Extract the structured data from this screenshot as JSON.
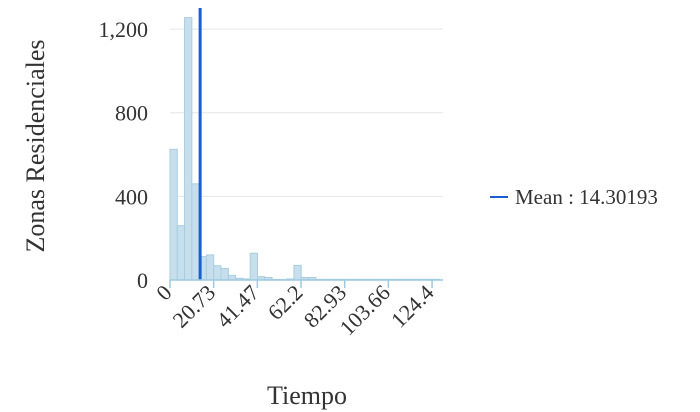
{
  "chart_data": {
    "type": "bar",
    "subtype": "histogram",
    "xlabel": "Tiempo",
    "ylabel": "Zonas Residenciales",
    "x_tick_labels": [
      "0",
      "20.73",
      "41.47",
      "62.2",
      "82.93",
      "103.66",
      "124.4"
    ],
    "x_ticks": [
      0,
      20.73,
      41.47,
      62.2,
      82.93,
      103.66,
      124.4
    ],
    "y_tick_labels": [
      "0",
      "400",
      "800",
      "1,200"
    ],
    "y_ticks": [
      0,
      400,
      800,
      1200
    ],
    "xlim": [
      0,
      129.6
    ],
    "ylim": [
      0,
      1320
    ],
    "bin_width": 3.46,
    "counts": [
      625,
      260,
      1255,
      460,
      112,
      120,
      68,
      55,
      22,
      8,
      5,
      128,
      16,
      12,
      3,
      2,
      5,
      70,
      12,
      12,
      3,
      3,
      3,
      3,
      3,
      3,
      3,
      3,
      3,
      3,
      3,
      3,
      3,
      3,
      3,
      3,
      3
    ],
    "mean": 14.30193,
    "legend": {
      "label": "Mean : 14.30193",
      "position": "right"
    },
    "grid": {
      "horizontal": true,
      "vertical": false
    },
    "colors": {
      "bar_fill": "#c7dfec",
      "bar_stroke": "#a8cde0",
      "mean_line": "#1a5fd0",
      "grid": "#e6e6e6",
      "axis": "#9ccae0"
    }
  }
}
